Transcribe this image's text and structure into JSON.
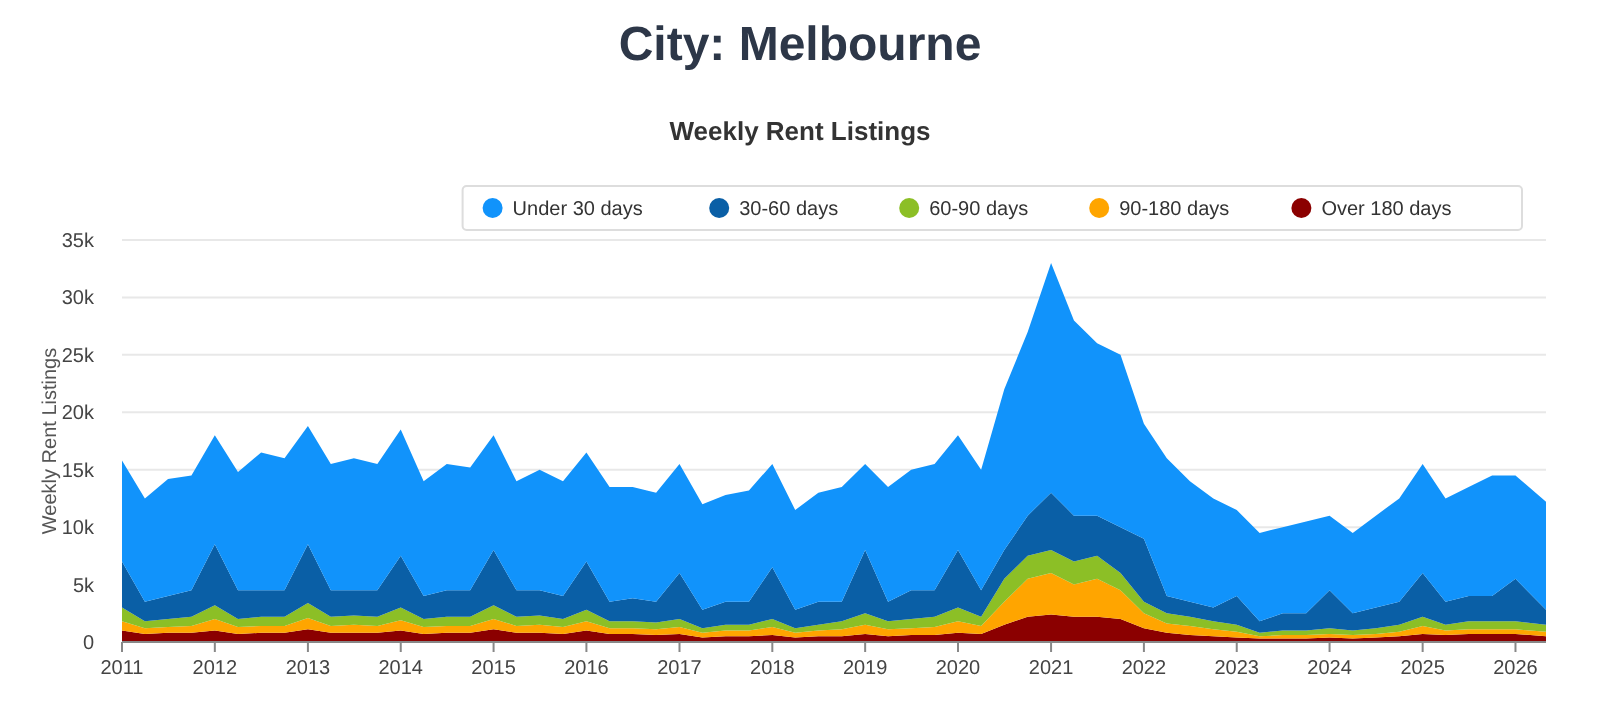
{
  "chart_data": {
    "type": "area",
    "stacked": true,
    "title": "City: Melbourne",
    "subtitle": "Weekly Rent Listings",
    "ylabel": "Weekly Rent Listings",
    "x": [
      "2011-01",
      "2011-04",
      "2011-07",
      "2011-10",
      "2012-01",
      "2012-04",
      "2012-07",
      "2012-10",
      "2013-01",
      "2013-04",
      "2013-07",
      "2013-10",
      "2014-01",
      "2014-04",
      "2014-07",
      "2014-10",
      "2015-01",
      "2015-04",
      "2015-07",
      "2015-10",
      "2016-01",
      "2016-04",
      "2016-07",
      "2016-10",
      "2017-01",
      "2017-04",
      "2017-07",
      "2017-10",
      "2018-01",
      "2018-04",
      "2018-07",
      "2018-10",
      "2019-01",
      "2019-04",
      "2019-07",
      "2019-10",
      "2020-01",
      "2020-04",
      "2020-07",
      "2020-10",
      "2021-01",
      "2021-04",
      "2021-07",
      "2021-10",
      "2022-01",
      "2022-04",
      "2022-07",
      "2022-10",
      "2023-01",
      "2023-04",
      "2023-07",
      "2023-10",
      "2024-01",
      "2024-04",
      "2024-07",
      "2024-10",
      "2025-01",
      "2025-04",
      "2025-07",
      "2025-10",
      "2026-01",
      "2026-05"
    ],
    "series": [
      {
        "name": "Over 180 days",
        "color": "#8b0000",
        "values": [
          1000,
          700,
          800,
          800,
          1000,
          700,
          800,
          800,
          1100,
          800,
          800,
          800,
          1000,
          700,
          800,
          800,
          1100,
          800,
          800,
          700,
          1000,
          700,
          700,
          600,
          700,
          400,
          500,
          500,
          600,
          400,
          500,
          500,
          700,
          500,
          600,
          600,
          800,
          700,
          1500,
          2200,
          2400,
          2200,
          2200,
          2000,
          1200,
          800,
          600,
          500,
          400,
          300,
          300,
          300,
          400,
          300,
          400,
          500,
          700,
          600,
          700,
          700,
          700,
          500
        ]
      },
      {
        "name": "90-180 days",
        "color": "#ffa500",
        "values": [
          800,
          500,
          500,
          600,
          1000,
          600,
          600,
          600,
          1000,
          600,
          700,
          600,
          900,
          600,
          600,
          600,
          900,
          600,
          700,
          600,
          800,
          500,
          500,
          500,
          600,
          400,
          500,
          500,
          700,
          400,
          500,
          600,
          800,
          600,
          600,
          700,
          1000,
          700,
          2000,
          3300,
          3600,
          2800,
          3300,
          2500,
          1300,
          800,
          800,
          600,
          500,
          200,
          300,
          300,
          300,
          300,
          300,
          400,
          700,
          400,
          400,
          400,
          400,
          400
        ]
      },
      {
        "name": "60-90 days",
        "color": "#8cbf26",
        "values": [
          1200,
          600,
          700,
          800,
          1200,
          700,
          800,
          800,
          1300,
          800,
          800,
          800,
          1100,
          700,
          800,
          800,
          1200,
          800,
          800,
          700,
          1000,
          600,
          600,
          600,
          700,
          400,
          500,
          500,
          700,
          400,
          500,
          700,
          1000,
          700,
          800,
          900,
          1200,
          800,
          2000,
          2000,
          2000,
          2000,
          2000,
          1500,
          1000,
          900,
          800,
          700,
          600,
          300,
          400,
          400,
          500,
          400,
          500,
          600,
          800,
          500,
          700,
          700,
          700,
          600
        ]
      },
      {
        "name": "30-60 days",
        "color": "#0a5fa6",
        "values": [
          4000,
          1700,
          2000,
          2300,
          5300,
          2500,
          2300,
          2300,
          5100,
          2300,
          2200,
          2300,
          4500,
          2000,
          2300,
          2300,
          4800,
          2300,
          2200,
          2000,
          4200,
          1700,
          2000,
          1800,
          4000,
          1600,
          2000,
          2000,
          4500,
          1600,
          2000,
          1700,
          5500,
          1700,
          2500,
          2300,
          5000,
          2300,
          2500,
          3500,
          5000,
          4000,
          3500,
          4000,
          5500,
          1500,
          1300,
          1200,
          2500,
          1000,
          1500,
          1500,
          3300,
          1500,
          1800,
          2000,
          3800,
          2000,
          2200,
          2200,
          3700,
          1300
        ]
      },
      {
        "name": "Under 30 days",
        "color": "#1193fb",
        "values": [
          8800,
          9000,
          10200,
          10000,
          9500,
          10300,
          12000,
          11500,
          10300,
          11000,
          11500,
          11000,
          11000,
          10000,
          11000,
          10700,
          10000,
          9500,
          10500,
          10000,
          9500,
          10000,
          9700,
          9500,
          9500,
          9200,
          9300,
          9700,
          9000,
          8700,
          9500,
          10000,
          7500,
          10000,
          10500,
          11000,
          10000,
          10500,
          14000,
          16000,
          20000,
          17000,
          15000,
          15000,
          10000,
          12000,
          10500,
          9500,
          7500,
          7700,
          7500,
          8000,
          6500,
          7000,
          8000,
          9000,
          9500,
          9000,
          9500,
          10500,
          9000,
          9400
        ]
      }
    ],
    "xlim": [
      "2011-01",
      "2026-05"
    ],
    "xticks": [
      "2011",
      "2012",
      "2013",
      "2014",
      "2015",
      "2016",
      "2017",
      "2018",
      "2019",
      "2020",
      "2021",
      "2022",
      "2023",
      "2024",
      "2025",
      "2026"
    ],
    "ylim": [
      0,
      35000
    ],
    "yticks": [
      {
        "value": 0,
        "label": "0"
      },
      {
        "value": 5000,
        "label": "5k"
      },
      {
        "value": 10000,
        "label": "10k"
      },
      {
        "value": 15000,
        "label": "15k"
      },
      {
        "value": 20000,
        "label": "20k"
      },
      {
        "value": 25000,
        "label": "25k"
      },
      {
        "value": 30000,
        "label": "30k"
      },
      {
        "value": 35000,
        "label": "35k"
      }
    ],
    "grid": "y",
    "legend": "top right"
  }
}
